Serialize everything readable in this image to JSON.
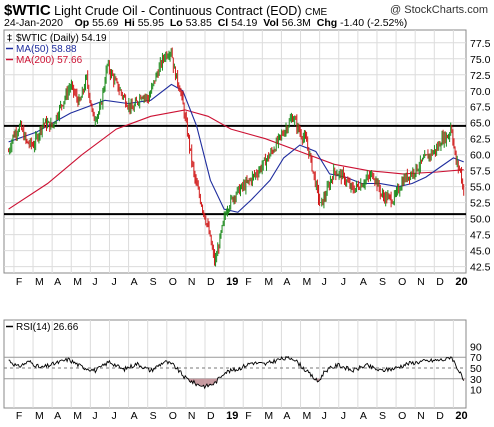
{
  "header": {
    "symbol": "$WTIC",
    "description": "Light Crude Oil - Continuous Contract (EOD)",
    "exchange": "CME",
    "copyright": "@ StockCharts.com",
    "date": "24-Jan-2020",
    "open_label": "Op",
    "open": "55.69",
    "high_label": "Hi",
    "high": "55.95",
    "low_label": "Lo",
    "low": "53.85",
    "close_label": "Cl",
    "close": "54.19",
    "volume_label": "Vol",
    "volume": "56.3M",
    "change_label": "Chg",
    "change": "-1.40 (-2.52%)"
  },
  "chart_data": [
    {
      "type": "line",
      "legend": [
        {
          "label": "$WTIC (Daily) 54.19",
          "color": "#000000"
        },
        {
          "label": "MA(50) 58.88",
          "color": "#1f2d9e"
        },
        {
          "label": "MA(200) 57.66",
          "color": "#cc1133"
        }
      ],
      "legend_position": "top-left",
      "x_labels": [
        "F",
        "M",
        "A",
        "M",
        "J",
        "J",
        "A",
        "S",
        "O",
        "N",
        "D",
        "19",
        "F",
        "M",
        "A",
        "M",
        "J",
        "J",
        "A",
        "S",
        "O",
        "N",
        "D",
        "20"
      ],
      "y_ticks": [
        42.5,
        45.0,
        47.5,
        50.0,
        52.5,
        55.0,
        57.5,
        60.0,
        62.5,
        65.0,
        67.5,
        70.0,
        72.5,
        75.0,
        77.5
      ],
      "ylim": [
        41.5,
        79.5
      ],
      "horizontal_lines": [
        64.5,
        50.7
      ],
      "grid": true,
      "price_path": [
        [
          2018.08,
          60.5
        ],
        [
          2018.1,
          63.0
        ],
        [
          2018.13,
          64.5
        ],
        [
          2018.16,
          61.8
        ],
        [
          2018.19,
          61.5
        ],
        [
          2018.23,
          65.0
        ],
        [
          2018.27,
          64.5
        ],
        [
          2018.31,
          67.8
        ],
        [
          2018.35,
          70.8
        ],
        [
          2018.39,
          68.0
        ],
        [
          2018.42,
          72.0
        ],
        [
          2018.45,
          65.5
        ],
        [
          2018.48,
          67.0
        ],
        [
          2018.51,
          74.0
        ],
        [
          2018.55,
          71.0
        ],
        [
          2018.59,
          68.5
        ],
        [
          2018.62,
          67.0
        ],
        [
          2018.66,
          69.5
        ],
        [
          2018.69,
          68.7
        ],
        [
          2018.72,
          72.0
        ],
        [
          2018.76,
          75.5
        ],
        [
          2018.79,
          76.4
        ],
        [
          2018.8,
          73.5
        ],
        [
          2018.83,
          70.0
        ],
        [
          2018.86,
          63.5
        ],
        [
          2018.89,
          56.5
        ],
        [
          2018.92,
          52.5
        ],
        [
          2018.95,
          48.5
        ],
        [
          2018.98,
          43.0
        ],
        [
          2019.0,
          46.5
        ],
        [
          2019.03,
          51.5
        ],
        [
          2019.07,
          54.0
        ],
        [
          2019.12,
          55.5
        ],
        [
          2019.17,
          57.5
        ],
        [
          2019.22,
          60.0
        ],
        [
          2019.27,
          63.0
        ],
        [
          2019.3,
          64.8
        ],
        [
          2019.32,
          66.0
        ],
        [
          2019.35,
          63.5
        ],
        [
          2019.38,
          62.0
        ],
        [
          2019.41,
          57.0
        ],
        [
          2019.44,
          52.0
        ],
        [
          2019.46,
          53.5
        ],
        [
          2019.5,
          57.5
        ],
        [
          2019.54,
          56.5
        ],
        [
          2019.58,
          54.5
        ],
        [
          2019.62,
          55.5
        ],
        [
          2019.67,
          57.0
        ],
        [
          2019.71,
          53.5
        ],
        [
          2019.76,
          53.0
        ],
        [
          2019.8,
          56.0
        ],
        [
          2019.85,
          57.5
        ],
        [
          2019.9,
          59.5
        ],
        [
          2019.95,
          61.0
        ],
        [
          2019.97,
          62.5
        ],
        [
          2020.0,
          63.0
        ],
        [
          2020.01,
          64.8
        ],
        [
          2020.03,
          59.0
        ],
        [
          2020.05,
          57.5
        ],
        [
          2020.065,
          54.19
        ]
      ],
      "ma50_path": [
        [
          2018.08,
          62.0
        ],
        [
          2018.2,
          63.5
        ],
        [
          2018.35,
          66.5
        ],
        [
          2018.5,
          68.5
        ],
        [
          2018.6,
          68.0
        ],
        [
          2018.7,
          68.5
        ],
        [
          2018.79,
          71.0
        ],
        [
          2018.84,
          70.0
        ],
        [
          2018.9,
          64.5
        ],
        [
          2018.96,
          56.0
        ],
        [
          2019.02,
          51.5
        ],
        [
          2019.08,
          51.0
        ],
        [
          2019.14,
          53.0
        ],
        [
          2019.22,
          56.0
        ],
        [
          2019.28,
          59.5
        ],
        [
          2019.35,
          61.5
        ],
        [
          2019.42,
          60.5
        ],
        [
          2019.48,
          57.0
        ],
        [
          2019.55,
          56.5
        ],
        [
          2019.62,
          55.5
        ],
        [
          2019.7,
          55.5
        ],
        [
          2019.78,
          55.0
        ],
        [
          2019.84,
          55.5
        ],
        [
          2019.9,
          56.5
        ],
        [
          2019.96,
          58.0
        ],
        [
          2020.02,
          59.5
        ],
        [
          2020.065,
          58.88
        ]
      ],
      "ma200_path": [
        [
          2018.08,
          51.5
        ],
        [
          2018.25,
          55.5
        ],
        [
          2018.4,
          60.0
        ],
        [
          2018.55,
          64.0
        ],
        [
          2018.7,
          66.0
        ],
        [
          2018.85,
          67.0
        ],
        [
          2018.95,
          66.0
        ],
        [
          2019.05,
          64.0
        ],
        [
          2019.2,
          62.5
        ],
        [
          2019.35,
          60.5
        ],
        [
          2019.5,
          58.5
        ],
        [
          2019.65,
          57.5
        ],
        [
          2019.8,
          57.0
        ],
        [
          2019.95,
          57.3
        ],
        [
          2020.065,
          57.66
        ]
      ]
    },
    {
      "type": "line",
      "legend": [
        {
          "label": "RSI(14) 26.66",
          "color": "#000000"
        }
      ],
      "y_ticks": [
        10,
        30,
        50,
        70,
        90
      ],
      "ylim": [
        0,
        100
      ],
      "reference_lines": [
        30,
        50,
        70
      ],
      "x_labels": [
        "F",
        "M",
        "A",
        "M",
        "J",
        "J",
        "A",
        "S",
        "O",
        "N",
        "D",
        "19",
        "F",
        "M",
        "A",
        "M",
        "J",
        "J",
        "A",
        "S",
        "O",
        "N",
        "D",
        "20"
      ],
      "rsi_path": [
        [
          2018.08,
          65
        ],
        [
          2018.12,
          52
        ],
        [
          2018.17,
          62
        ],
        [
          2018.22,
          50
        ],
        [
          2018.28,
          58
        ],
        [
          2018.34,
          66
        ],
        [
          2018.4,
          52
        ],
        [
          2018.46,
          45
        ],
        [
          2018.52,
          62
        ],
        [
          2018.58,
          47
        ],
        [
          2018.64,
          58
        ],
        [
          2018.7,
          45
        ],
        [
          2018.76,
          62
        ],
        [
          2018.8,
          55
        ],
        [
          2018.85,
          32
        ],
        [
          2018.9,
          20
        ],
        [
          2018.94,
          16
        ],
        [
          2018.98,
          22
        ],
        [
          2019.02,
          42
        ],
        [
          2019.08,
          48
        ],
        [
          2019.14,
          60
        ],
        [
          2019.2,
          57
        ],
        [
          2019.26,
          66
        ],
        [
          2019.32,
          69
        ],
        [
          2019.36,
          52
        ],
        [
          2019.4,
          36
        ],
        [
          2019.43,
          24
        ],
        [
          2019.46,
          45
        ],
        [
          2019.52,
          56
        ],
        [
          2019.58,
          45
        ],
        [
          2019.64,
          55
        ],
        [
          2019.7,
          45
        ],
        [
          2019.76,
          49
        ],
        [
          2019.82,
          58
        ],
        [
          2019.88,
          62
        ],
        [
          2019.94,
          64
        ],
        [
          2019.99,
          66
        ],
        [
          2020.01,
          72
        ],
        [
          2020.04,
          48
        ],
        [
          2020.065,
          26.66
        ]
      ]
    }
  ]
}
